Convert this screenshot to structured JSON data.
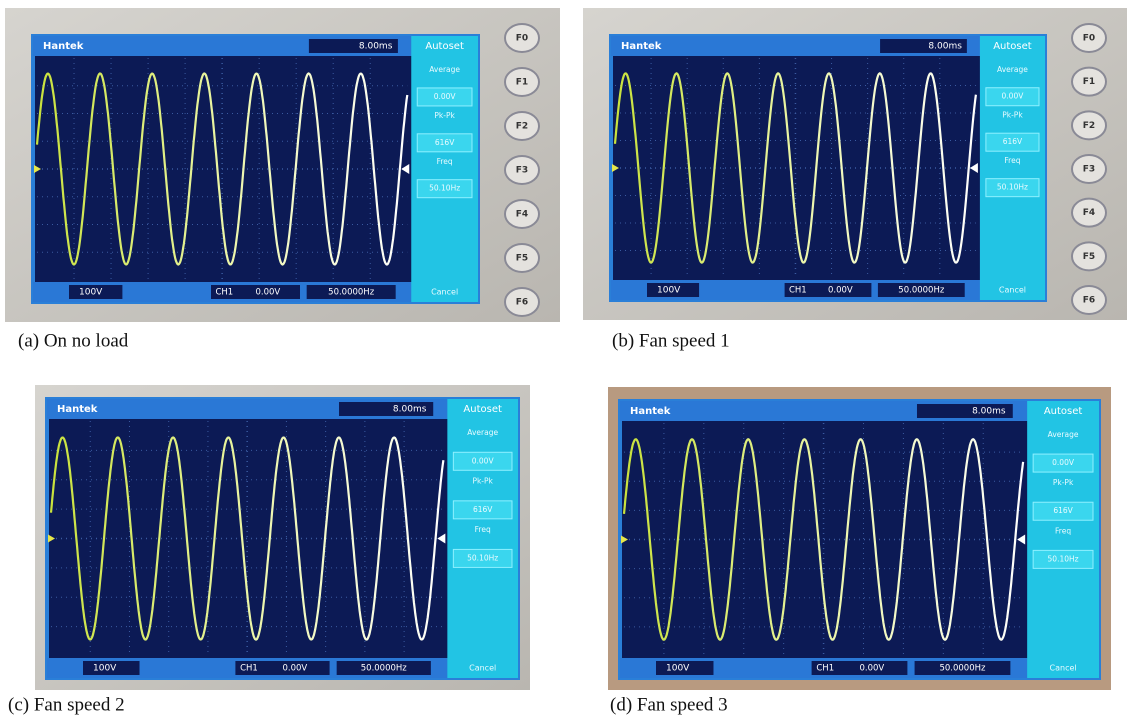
{
  "panels": [
    {
      "caption": "(a) On no load",
      "brand": "Hantek",
      "timebase": "8.00ms",
      "autoset": "Autoset",
      "measure": [
        "Average",
        "0.00V",
        "Pk-Pk",
        "616V",
        "Freq",
        "50.10Hz"
      ],
      "volts": "100V",
      "channel": "CH1",
      "trigger": "0.00V",
      "rate": "50.0000Hz",
      "cancel": "Cancel",
      "buttons": [
        "F0",
        "F1",
        "F2",
        "F3",
        "F4",
        "F5",
        "F6"
      ]
    },
    {
      "caption": "(b) Fan speed 1",
      "brand": "Hantek",
      "timebase": "8.00ms",
      "autoset": "Autoset",
      "measure": [
        "Average",
        "0.00V",
        "Pk-Pk",
        "616V",
        "Freq",
        "50.10Hz"
      ],
      "volts": "100V",
      "channel": "CH1",
      "trigger": "0.00V",
      "rate": "50.0000Hz",
      "cancel": "Cancel",
      "buttons": [
        "F0",
        "F1",
        "F2",
        "F3",
        "F4",
        "F5",
        "F6"
      ]
    },
    {
      "caption": "(c) Fan speed 2",
      "brand": "Hantek",
      "timebase": "8.00ms",
      "autoset": "Autoset",
      "measure": [
        "Average",
        "0.00V",
        "Pk-Pk",
        "616V",
        "Freq",
        "50.10Hz"
      ],
      "volts": "100V",
      "channel": "CH1",
      "trigger": "0.00V",
      "rate": "50.0000Hz",
      "cancel": "Cancel"
    },
    {
      "caption": "(d) Fan speed 3",
      "brand": "Hantek",
      "timebase": "8.00ms",
      "autoset": "Autoset",
      "measure": [
        "Average",
        "0.00V",
        "Pk-Pk",
        "616V",
        "Freq",
        "50.10Hz"
      ],
      "volts": "100V",
      "channel": "CH1",
      "trigger": "0.00V",
      "rate": "50.0000Hz",
      "cancel": "Cancel"
    }
  ]
}
